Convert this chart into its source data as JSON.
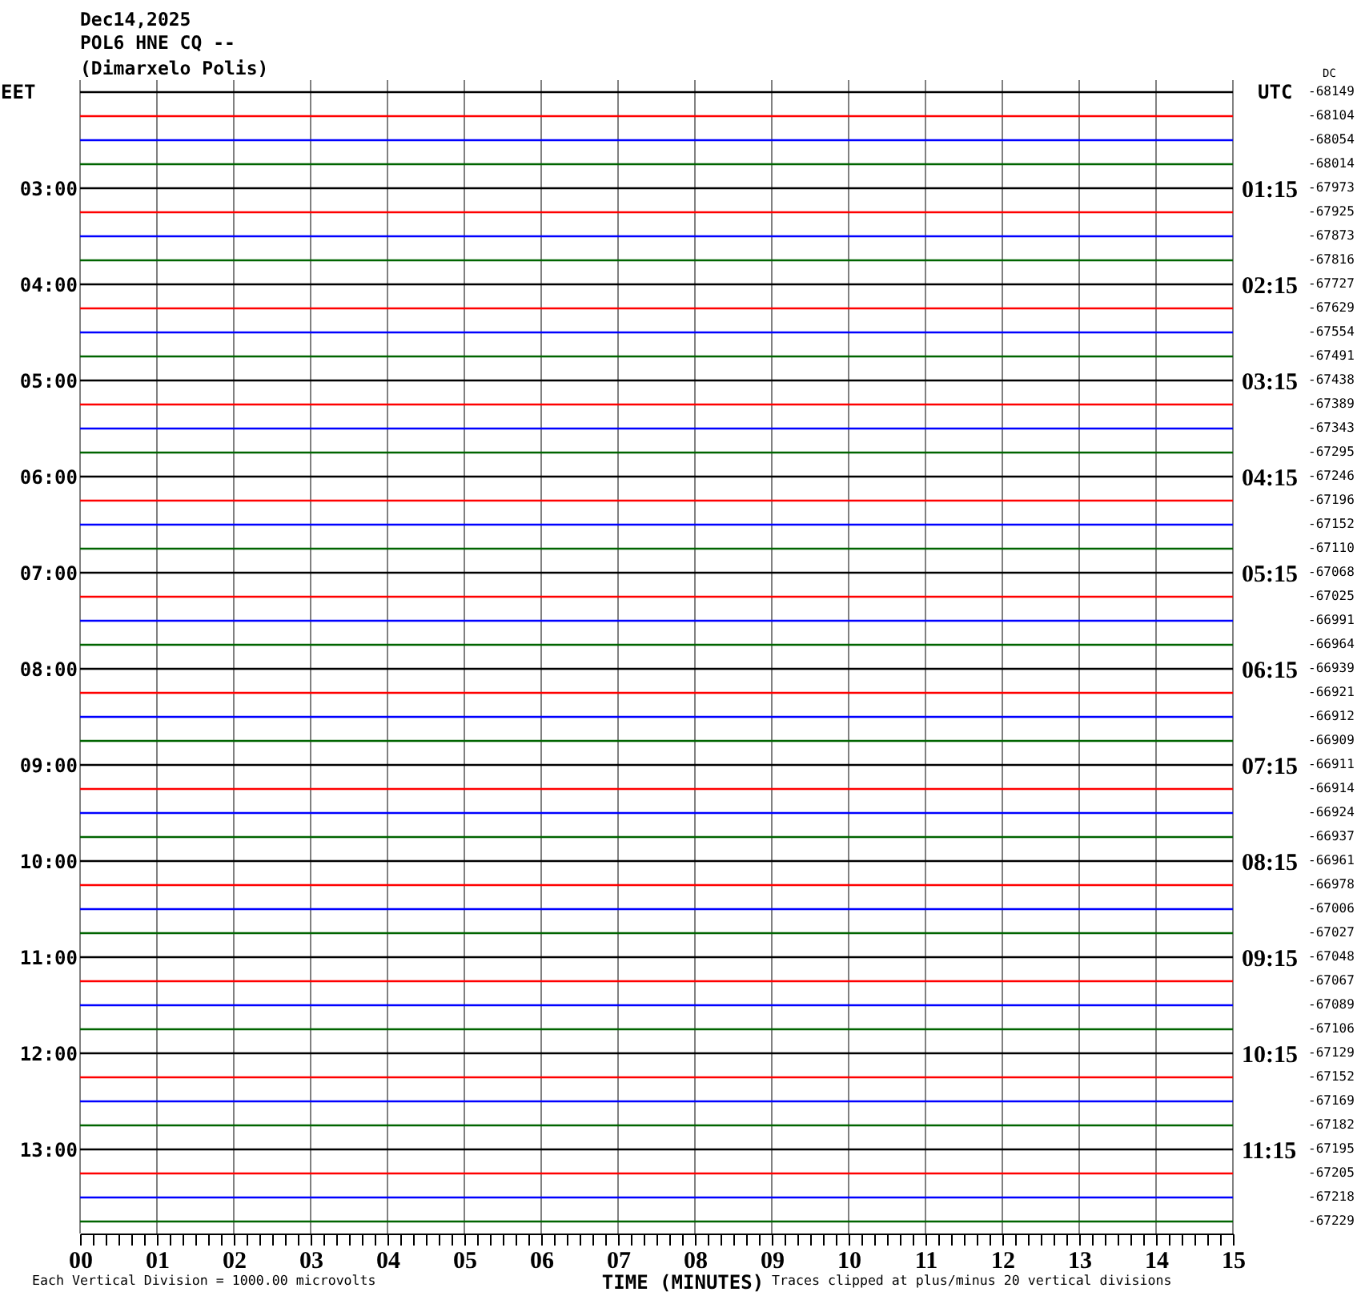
{
  "chart_data": {
    "type": "line",
    "title": "Dec14,2025",
    "subtitle": "POL6 HNE CQ --\n(Dimarxelo Polis)",
    "xlabel": "TIME (MINUTES)",
    "ylabel": "EET",
    "y2label": "UTC",
    "annotations": [
      "DC",
      "-68149",
      "-68104",
      "-68054",
      "-68014",
      "-67973",
      "-67925",
      "-67873",
      "-67816",
      "-67727",
      "-67629",
      "-67554",
      "-67491",
      "-67438",
      "-67389",
      "-67343",
      "-67295",
      "-67246",
      "-67196",
      "-67152",
      "-67110",
      "-67068",
      "-67025",
      "-66991",
      "-66964",
      "-66939",
      "-66921",
      "-66912",
      "-66909",
      "-66911",
      "-66914",
      "-66924",
      "-66937",
      "-66961",
      "-66978",
      "-67006",
      "-67027",
      "-67048",
      "-67067",
      "-67089",
      "-67106",
      "-67129",
      "-67152",
      "-67169",
      "-67182",
      "-67195",
      "-67205",
      "-67218",
      "-67229",
      "Each Vertical Division = 1000.00 microvolts",
      "Traces clipped at plus/minus 20 vertical divisions"
    ],
    "grid": "x",
    "x": [
      0,
      15
    ],
    "xlim": [
      0,
      15
    ],
    "xticks": [
      {
        "value": 0,
        "label": "00"
      },
      {
        "value": 0.1667,
        "label": null
      },
      {
        "value": 0.3333,
        "label": null
      },
      {
        "value": 0.5,
        "label": null
      },
      {
        "value": 0.6667,
        "label": null
      },
      {
        "value": 0.8333,
        "label": null
      },
      {
        "value": 1,
        "label": "01"
      },
      {
        "value": 1.1667,
        "label": null
      },
      {
        "value": 1.3333,
        "label": null
      },
      {
        "value": 1.5,
        "label": null
      },
      {
        "value": 1.6667,
        "label": null
      },
      {
        "value": 1.8333,
        "label": null
      },
      {
        "value": 2,
        "label": "02"
      },
      {
        "value": 2.1667,
        "label": null
      },
      {
        "value": 2.3333,
        "label": null
      },
      {
        "value": 2.5,
        "label": null
      },
      {
        "value": 2.6667,
        "label": null
      },
      {
        "value": 2.8333,
        "label": null
      },
      {
        "value": 3,
        "label": "03"
      },
      {
        "value": 3.1667,
        "label": null
      },
      {
        "value": 3.3333,
        "label": null
      },
      {
        "value": 3.5,
        "label": null
      },
      {
        "value": 3.6667,
        "label": null
      },
      {
        "value": 3.8333,
        "label": null
      },
      {
        "value": 4,
        "label": "04"
      },
      {
        "value": 4.1667,
        "label": null
      },
      {
        "value": 4.3333,
        "label": null
      },
      {
        "value": 4.5,
        "label": null
      },
      {
        "value": 4.6667,
        "label": null
      },
      {
        "value": 4.8333,
        "label": null
      },
      {
        "value": 5,
        "label": "05"
      },
      {
        "value": 5.1667,
        "label": null
      },
      {
        "value": 5.3333,
        "label": null
      },
      {
        "value": 5.5,
        "label": null
      },
      {
        "value": 5.6667,
        "label": null
      },
      {
        "value": 5.8333,
        "label": null
      },
      {
        "value": 6,
        "label": "06"
      },
      {
        "value": 6.1667,
        "label": null
      },
      {
        "value": 6.3333,
        "label": null
      },
      {
        "value": 6.5,
        "label": null
      },
      {
        "value": 6.6667,
        "label": null
      },
      {
        "value": 6.8333,
        "label": null
      },
      {
        "value": 7,
        "label": "07"
      },
      {
        "value": 7.1667,
        "label": null
      },
      {
        "value": 7.3333,
        "label": null
      },
      {
        "value": 7.5,
        "label": null
      },
      {
        "value": 7.6667,
        "label": null
      },
      {
        "value": 7.8333,
        "label": null
      },
      {
        "value": 8,
        "label": "08"
      },
      {
        "value": 8.1667,
        "label": null
      },
      {
        "value": 8.3333,
        "label": null
      },
      {
        "value": 8.5,
        "label": null
      },
      {
        "value": 8.6667,
        "label": null
      },
      {
        "value": 8.8333,
        "label": null
      },
      {
        "value": 9,
        "label": "09"
      },
      {
        "value": 9.1667,
        "label": null
      },
      {
        "value": 9.3333,
        "label": null
      },
      {
        "value": 9.5,
        "label": null
      },
      {
        "value": 9.6667,
        "label": null
      },
      {
        "value": 9.8333,
        "label": null
      },
      {
        "value": 10,
        "label": "10"
      },
      {
        "value": 10.1667,
        "label": null
      },
      {
        "value": 10.3333,
        "label": null
      },
      {
        "value": 10.5,
        "label": null
      },
      {
        "value": 10.6667,
        "label": null
      },
      {
        "value": 10.8333,
        "label": null
      },
      {
        "value": 11,
        "label": "11"
      },
      {
        "value": 11.1667,
        "label": null
      },
      {
        "value": 11.3333,
        "label": null
      },
      {
        "value": 11.5,
        "label": null
      },
      {
        "value": 11.6667,
        "label": null
      },
      {
        "value": 11.8333,
        "label": null
      },
      {
        "value": 12,
        "label": "12"
      },
      {
        "value": 12.1667,
        "label": null
      },
      {
        "value": 12.3333,
        "label": null
      },
      {
        "value": 12.5,
        "label": null
      },
      {
        "value": 12.6667,
        "label": null
      },
      {
        "value": 12.8333,
        "label": null
      },
      {
        "value": 13,
        "label": "13"
      },
      {
        "value": 13.1667,
        "label": null
      },
      {
        "value": 13.3333,
        "label": null
      },
      {
        "value": 13.5,
        "label": null
      },
      {
        "value": 13.6667,
        "label": null
      },
      {
        "value": 13.8333,
        "label": null
      },
      {
        "value": 14,
        "label": "14"
      },
      {
        "value": 14.1667,
        "label": null
      },
      {
        "value": 14.3333,
        "label": null
      },
      {
        "value": 14.5,
        "label": null
      },
      {
        "value": 14.6667,
        "label": null
      },
      {
        "value": 14.8333,
        "label": null
      },
      {
        "value": 15,
        "label": "15"
      }
    ],
    "ylim": [
      13.875,
      1.875
    ],
    "yticks": [
      {
        "value": 3,
        "label": "03:00"
      },
      {
        "value": 4,
        "label": "04:00"
      },
      {
        "value": 5,
        "label": "05:00"
      },
      {
        "value": 6,
        "label": "06:00"
      },
      {
        "value": 7,
        "label": "07:00"
      },
      {
        "value": 8,
        "label": "08:00"
      },
      {
        "value": 9,
        "label": "09:00"
      },
      {
        "value": 10,
        "label": "10:00"
      },
      {
        "value": 11,
        "label": "11:00"
      },
      {
        "value": 12,
        "label": "12:00"
      },
      {
        "value": 13,
        "label": "13:00"
      }
    ],
    "y2lim": [
      12.125,
      0.125
    ],
    "y2ticks": [
      {
        "value": 1.25,
        "label": "01:15"
      },
      {
        "value": 2.25,
        "label": "02:15"
      },
      {
        "value": 3.25,
        "label": "03:15"
      },
      {
        "value": 4.25,
        "label": "04:15"
      },
      {
        "value": 5.25,
        "label": "05:15"
      },
      {
        "value": 6.25,
        "label": "06:15"
      },
      {
        "value": 7.25,
        "label": "07:15"
      },
      {
        "value": 8.25,
        "label": "08:15"
      },
      {
        "value": 9.25,
        "label": "09:15"
      },
      {
        "value": 10.25,
        "label": "10:15"
      },
      {
        "value": 11.25,
        "label": "11:15"
      }
    ],
    "series": [
      {
        "color": "#000000",
        "values": [
          2,
          2
        ]
      },
      {
        "color": "#ff0000",
        "values": [
          2.25,
          2.25
        ]
      },
      {
        "color": "#0000ff",
        "values": [
          2.5,
          2.5
        ]
      },
      {
        "color": "#006400",
        "values": [
          2.75,
          2.75
        ]
      },
      {
        "color": "#000000",
        "values": [
          3,
          3
        ]
      },
      {
        "color": "#ff0000",
        "values": [
          3.25,
          3.25
        ]
      },
      {
        "color": "#0000ff",
        "values": [
          3.5,
          3.5
        ]
      },
      {
        "color": "#006400",
        "values": [
          3.75,
          3.75
        ]
      },
      {
        "color": "#000000",
        "values": [
          4,
          4
        ]
      },
      {
        "color": "#ff0000",
        "values": [
          4.25,
          4.25
        ]
      },
      {
        "color": "#0000ff",
        "values": [
          4.5,
          4.5
        ]
      },
      {
        "color": "#006400",
        "values": [
          4.75,
          4.75
        ]
      },
      {
        "color": "#000000",
        "values": [
          5,
          5
        ]
      },
      {
        "color": "#ff0000",
        "values": [
          5.25,
          5.25
        ]
      },
      {
        "color": "#0000ff",
        "values": [
          5.5,
          5.5
        ]
      },
      {
        "color": "#006400",
        "values": [
          5.75,
          5.75
        ]
      },
      {
        "color": "#000000",
        "values": [
          6,
          6
        ]
      },
      {
        "color": "#ff0000",
        "values": [
          6.25,
          6.25
        ]
      },
      {
        "color": "#0000ff",
        "values": [
          6.5,
          6.5
        ]
      },
      {
        "color": "#006400",
        "values": [
          6.75,
          6.75
        ]
      },
      {
        "color": "#000000",
        "values": [
          7,
          7
        ]
      },
      {
        "color": "#ff0000",
        "values": [
          7.25,
          7.25
        ]
      },
      {
        "color": "#0000ff",
        "values": [
          7.5,
          7.5
        ]
      },
      {
        "color": "#006400",
        "values": [
          7.75,
          7.75
        ]
      },
      {
        "color": "#000000",
        "values": [
          8,
          8
        ]
      },
      {
        "color": "#ff0000",
        "values": [
          8.25,
          8.25
        ]
      },
      {
        "color": "#0000ff",
        "values": [
          8.5,
          8.5
        ]
      },
      {
        "color": "#006400",
        "values": [
          8.75,
          8.75
        ]
      },
      {
        "color": "#000000",
        "values": [
          9,
          9
        ]
      },
      {
        "color": "#ff0000",
        "values": [
          9.25,
          9.25
        ]
      },
      {
        "color": "#0000ff",
        "values": [
          9.5,
          9.5
        ]
      },
      {
        "color": "#006400",
        "values": [
          9.75,
          9.75
        ]
      },
      {
        "color": "#000000",
        "values": [
          10,
          10
        ]
      },
      {
        "color": "#ff0000",
        "values": [
          10.25,
          10.25
        ]
      },
      {
        "color": "#0000ff",
        "values": [
          10.5,
          10.5
        ]
      },
      {
        "color": "#006400",
        "values": [
          10.75,
          10.75
        ]
      },
      {
        "color": "#000000",
        "values": [
          11,
          11
        ]
      },
      {
        "color": "#ff0000",
        "values": [
          11.25,
          11.25
        ]
      },
      {
        "color": "#0000ff",
        "values": [
          11.5,
          11.5
        ]
      },
      {
        "color": "#006400",
        "values": [
          11.75,
          11.75
        ]
      },
      {
        "color": "#000000",
        "values": [
          12,
          12
        ]
      },
      {
        "color": "#ff0000",
        "values": [
          12.25,
          12.25
        ]
      },
      {
        "color": "#0000ff",
        "values": [
          12.5,
          12.5
        ]
      },
      {
        "color": "#006400",
        "values": [
          12.75,
          12.75
        ]
      },
      {
        "color": "#000000",
        "values": [
          13,
          13
        ]
      },
      {
        "color": "#ff0000",
        "values": [
          13.25,
          13.25
        ]
      },
      {
        "color": "#0000ff",
        "values": [
          13.5,
          13.5
        ]
      },
      {
        "color": "#006400",
        "values": [
          13.75,
          13.75
        ]
      }
    ]
  }
}
